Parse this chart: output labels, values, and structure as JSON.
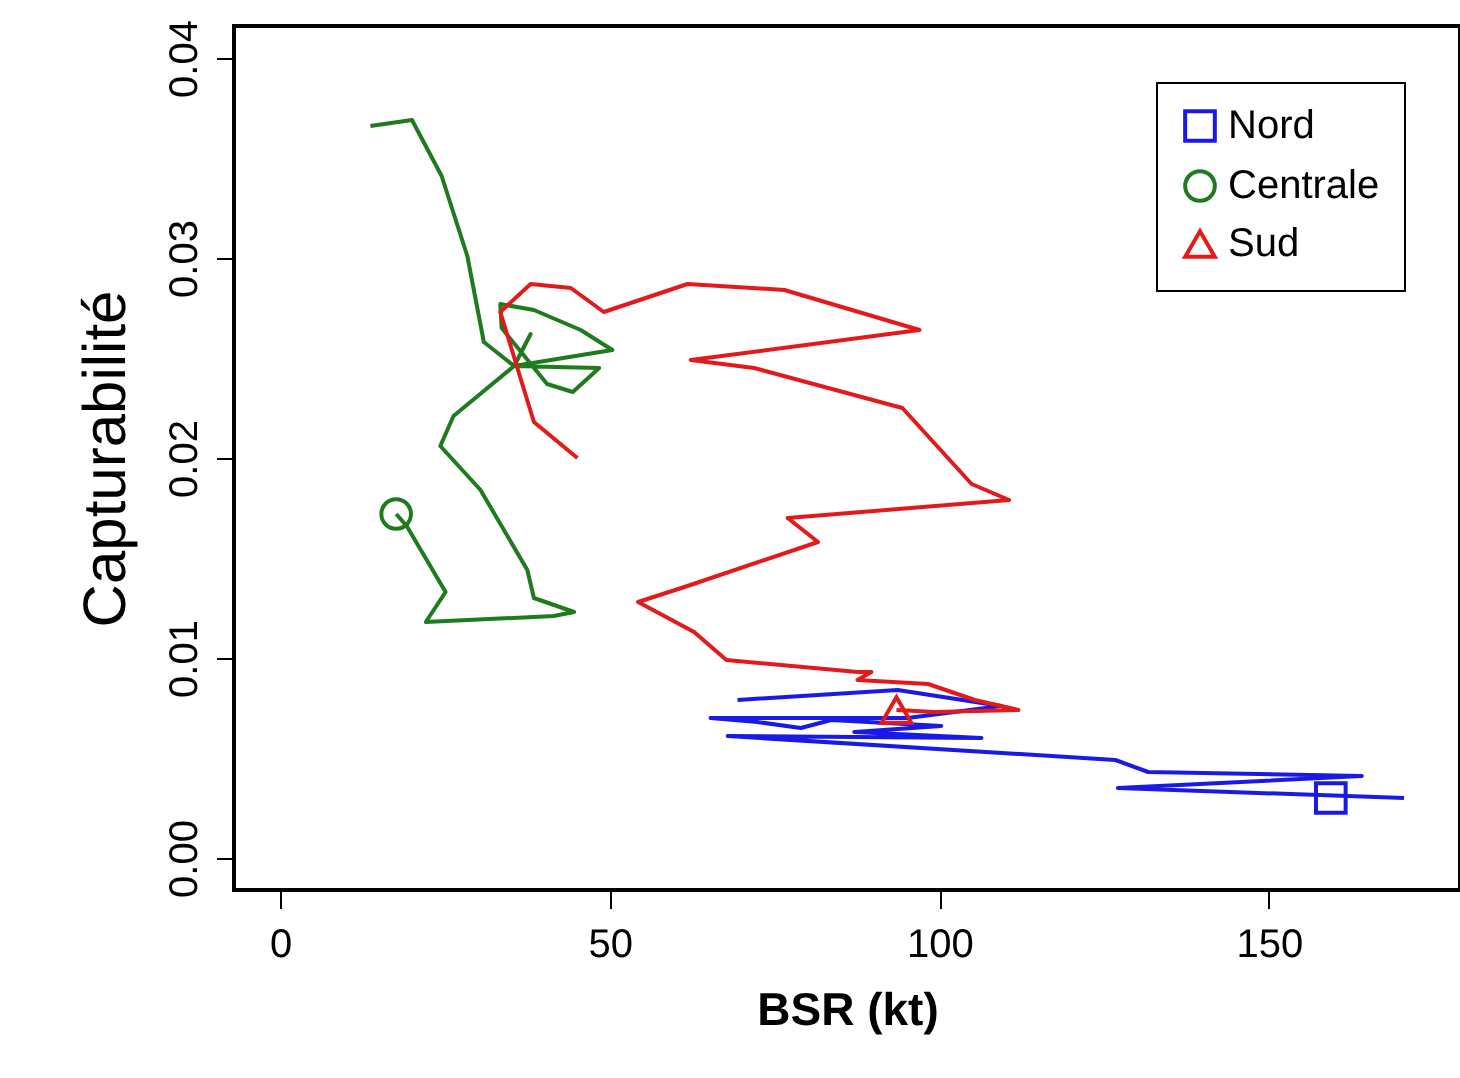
{
  "chart_data": {
    "type": "line",
    "xlabel": "BSR (kt)",
    "ylabel": "Capturabilité",
    "xlim": [
      -7,
      179
    ],
    "ylim": [
      -0.0016,
      0.0416
    ],
    "xticks": [
      0,
      50,
      100,
      150
    ],
    "yticks": [
      {
        "value": 0,
        "label": "0.00"
      },
      {
        "value": 0.01,
        "label": "0.01"
      },
      {
        "value": 0.02,
        "label": "0.02"
      },
      {
        "value": 0.03,
        "label": "0.03"
      },
      {
        "value": 0.04,
        "label": "0.04"
      }
    ],
    "grid": false,
    "legend": "top right",
    "line_style": "solid",
    "series": [
      {
        "color": "#1a1ae6",
        "marker": "none",
        "x": [
          69.4,
          93.7,
          109.4,
          95.2,
          65.3,
          72.4,
          79.0,
          83.6,
          100.3,
          87.1,
          106.4,
          67.9,
          126.7,
          131.7,
          164.1,
          127.1,
          170.5
        ],
        "values": [
          0.0079,
          0.0084,
          0.0076,
          0.007,
          0.007,
          0.0068,
          0.0065,
          0.0069,
          0.0066,
          0.0063,
          0.006,
          0.0061,
          0.0049,
          0.0043,
          0.0041,
          0.0035,
          0.003
        ]
      },
      {
        "color": "#1e7b1e",
        "marker": "none",
        "x": [
          13.7,
          20.0,
          24.5,
          28.4,
          30.9,
          35.5,
          48.4,
          44.4,
          40.5,
          33.6,
          33.4,
          38.5,
          45.6,
          50.4,
          35.5,
          38.0,
          35.5,
          26.3,
          24.3,
          30.4,
          37.5,
          38.5,
          44.6,
          41.5,
          22.1,
          25.1,
          19.2,
          17.6
        ],
        "values": [
          0.0366,
          0.0369,
          0.0341,
          0.0301,
          0.0258,
          0.0246,
          0.0245,
          0.0233,
          0.0237,
          0.0265,
          0.0277,
          0.0274,
          0.0264,
          0.0254,
          0.0246,
          0.0262,
          0.0246,
          0.0221,
          0.0206,
          0.0184,
          0.0144,
          0.013,
          0.0123,
          0.0121,
          0.0118,
          0.0133,
          0.0166,
          0.0172
        ]
      },
      {
        "color": "#e31a1c",
        "marker": "none",
        "x": [
          45.1,
          38.5,
          33.4,
          38.0,
          44.1,
          49.1,
          61.8,
          76.5,
          97.0,
          62.3,
          71.9,
          94.4,
          104.9,
          110.6,
          77.0,
          81.6,
          61.8,
          54.3,
          62.8,
          67.7,
          87.6,
          89.7,
          87.6,
          98.3,
          105.4,
          112.0,
          99.3,
          93.5
        ],
        "values": [
          0.02,
          0.0218,
          0.0273,
          0.0287,
          0.0285,
          0.0273,
          0.0287,
          0.0284,
          0.0264,
          0.0249,
          0.0245,
          0.0225,
          0.0187,
          0.0179,
          0.017,
          0.0158,
          0.0136,
          0.0128,
          0.0113,
          0.0099,
          0.0093,
          0.0093,
          0.0089,
          0.0087,
          0.0079,
          0.0074,
          0.0073,
          0.0074
        ]
      },
      {
        "name": "Nord",
        "type": "scatter",
        "marker": "square",
        "color": "#1a1ae6",
        "x": [
          159.4
        ],
        "values": [
          0.003
        ]
      },
      {
        "name": "Centrale",
        "type": "scatter",
        "marker": "circle",
        "color": "#1e7b1e",
        "x": [
          17.6
        ],
        "values": [
          0.0172
        ]
      },
      {
        "name": "Sud",
        "type": "scatter",
        "marker": "triangle",
        "color": "#e31a1c",
        "x": [
          93.5
        ],
        "values": [
          0.0074
        ]
      }
    ]
  }
}
